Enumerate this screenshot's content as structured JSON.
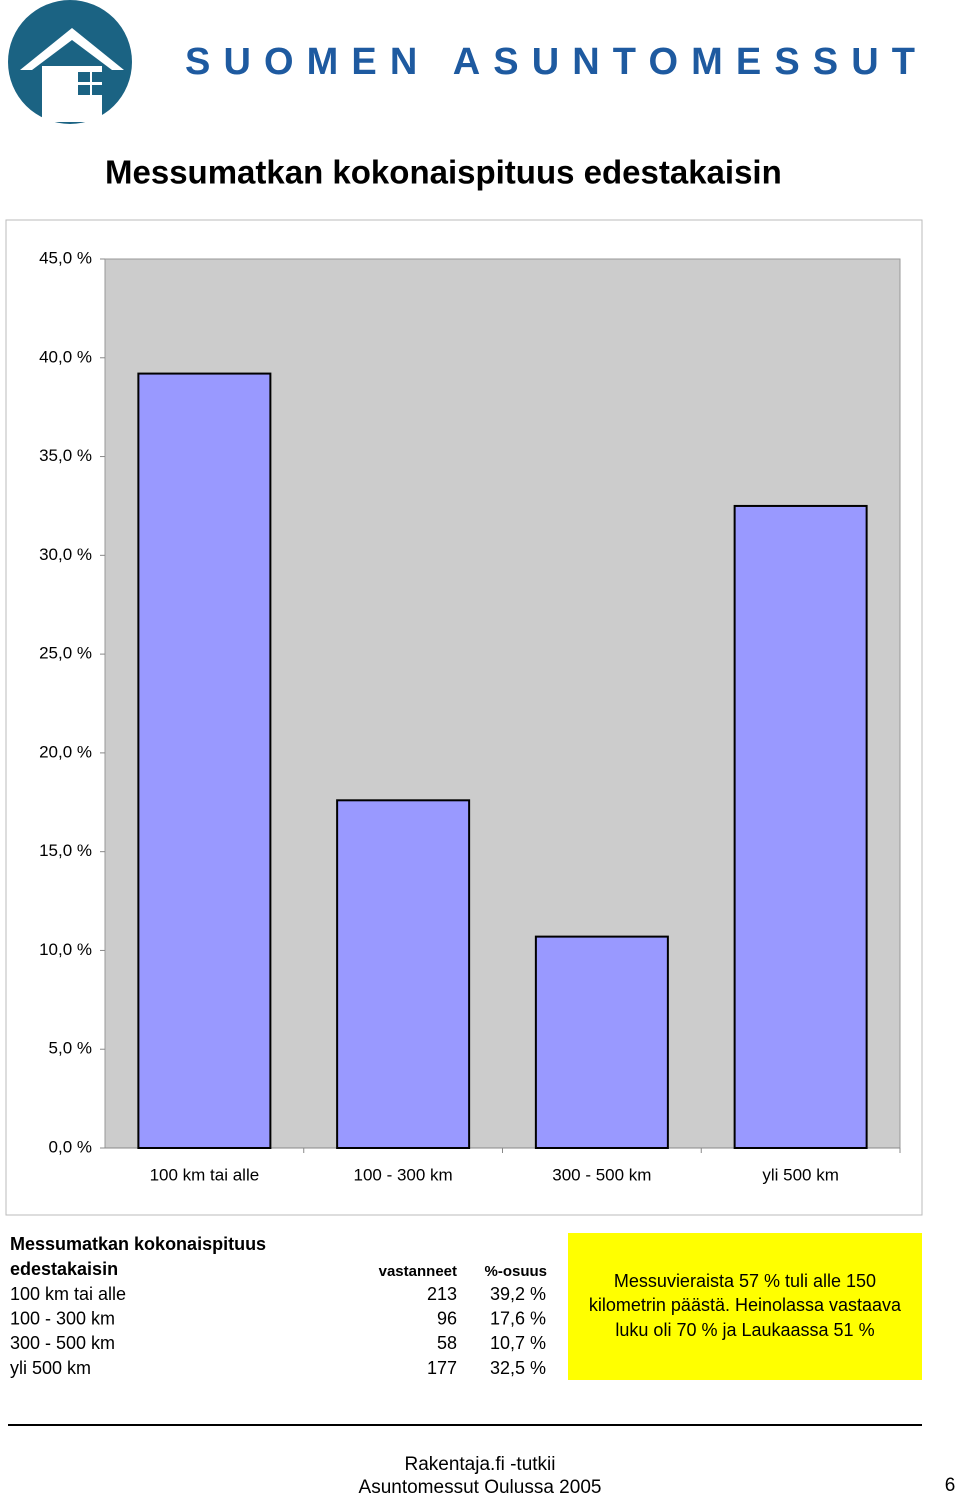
{
  "header": {
    "brand": "SUOMEN ASUNTOMESSUT"
  },
  "chart_data": {
    "type": "bar",
    "title": "Messumatkan kokonaispituus edestakaisin",
    "categories": [
      "100 km tai alle",
      "100 - 300 km",
      "300 - 500 km",
      "yli 500 km"
    ],
    "values": [
      39.2,
      17.6,
      10.7,
      32.5
    ],
    "color": "#9999ff",
    "background": "#cccccc",
    "grid": false,
    "ylim": [
      0,
      45
    ],
    "yticks": [
      {
        "value": 0,
        "label": "0,0 %"
      },
      {
        "value": 5,
        "label": "5,0 %"
      },
      {
        "value": 10,
        "label": "10,0 %"
      },
      {
        "value": 15,
        "label": "15,0 %"
      },
      {
        "value": 20,
        "label": "20,0 %"
      },
      {
        "value": 25,
        "label": "25,0 %"
      },
      {
        "value": 30,
        "label": "30,0 %"
      },
      {
        "value": 35,
        "label": "35,0 %"
      },
      {
        "value": 40,
        "label": "40,0 %"
      },
      {
        "value": 45,
        "label": "45,0 %"
      }
    ]
  },
  "table": {
    "title": [
      "Messumatkan kokonaispituus",
      "edestakaisin"
    ],
    "columns": [
      "vastanneet",
      "%-osuus"
    ],
    "rows": [
      [
        "100 km tai alle",
        "213",
        "39,2 %"
      ],
      [
        "100 - 300 km",
        "96",
        "17,6 %"
      ],
      [
        "300 - 500 km",
        "58",
        "10,7 %"
      ],
      [
        "yli 500 km",
        "177",
        "32,5 %"
      ]
    ]
  },
  "note": [
    "Messuvieraista 57 % tuli alle 150",
    "kilometrin päästä. Heinolassa vastaava",
    "luku oli 70 % ja Laukaassa 51 %"
  ],
  "footer": {
    "lines": [
      "Rakentaja.fi -tutkii",
      "Asuntomessut Oulussa 2005"
    ],
    "page": "6"
  }
}
